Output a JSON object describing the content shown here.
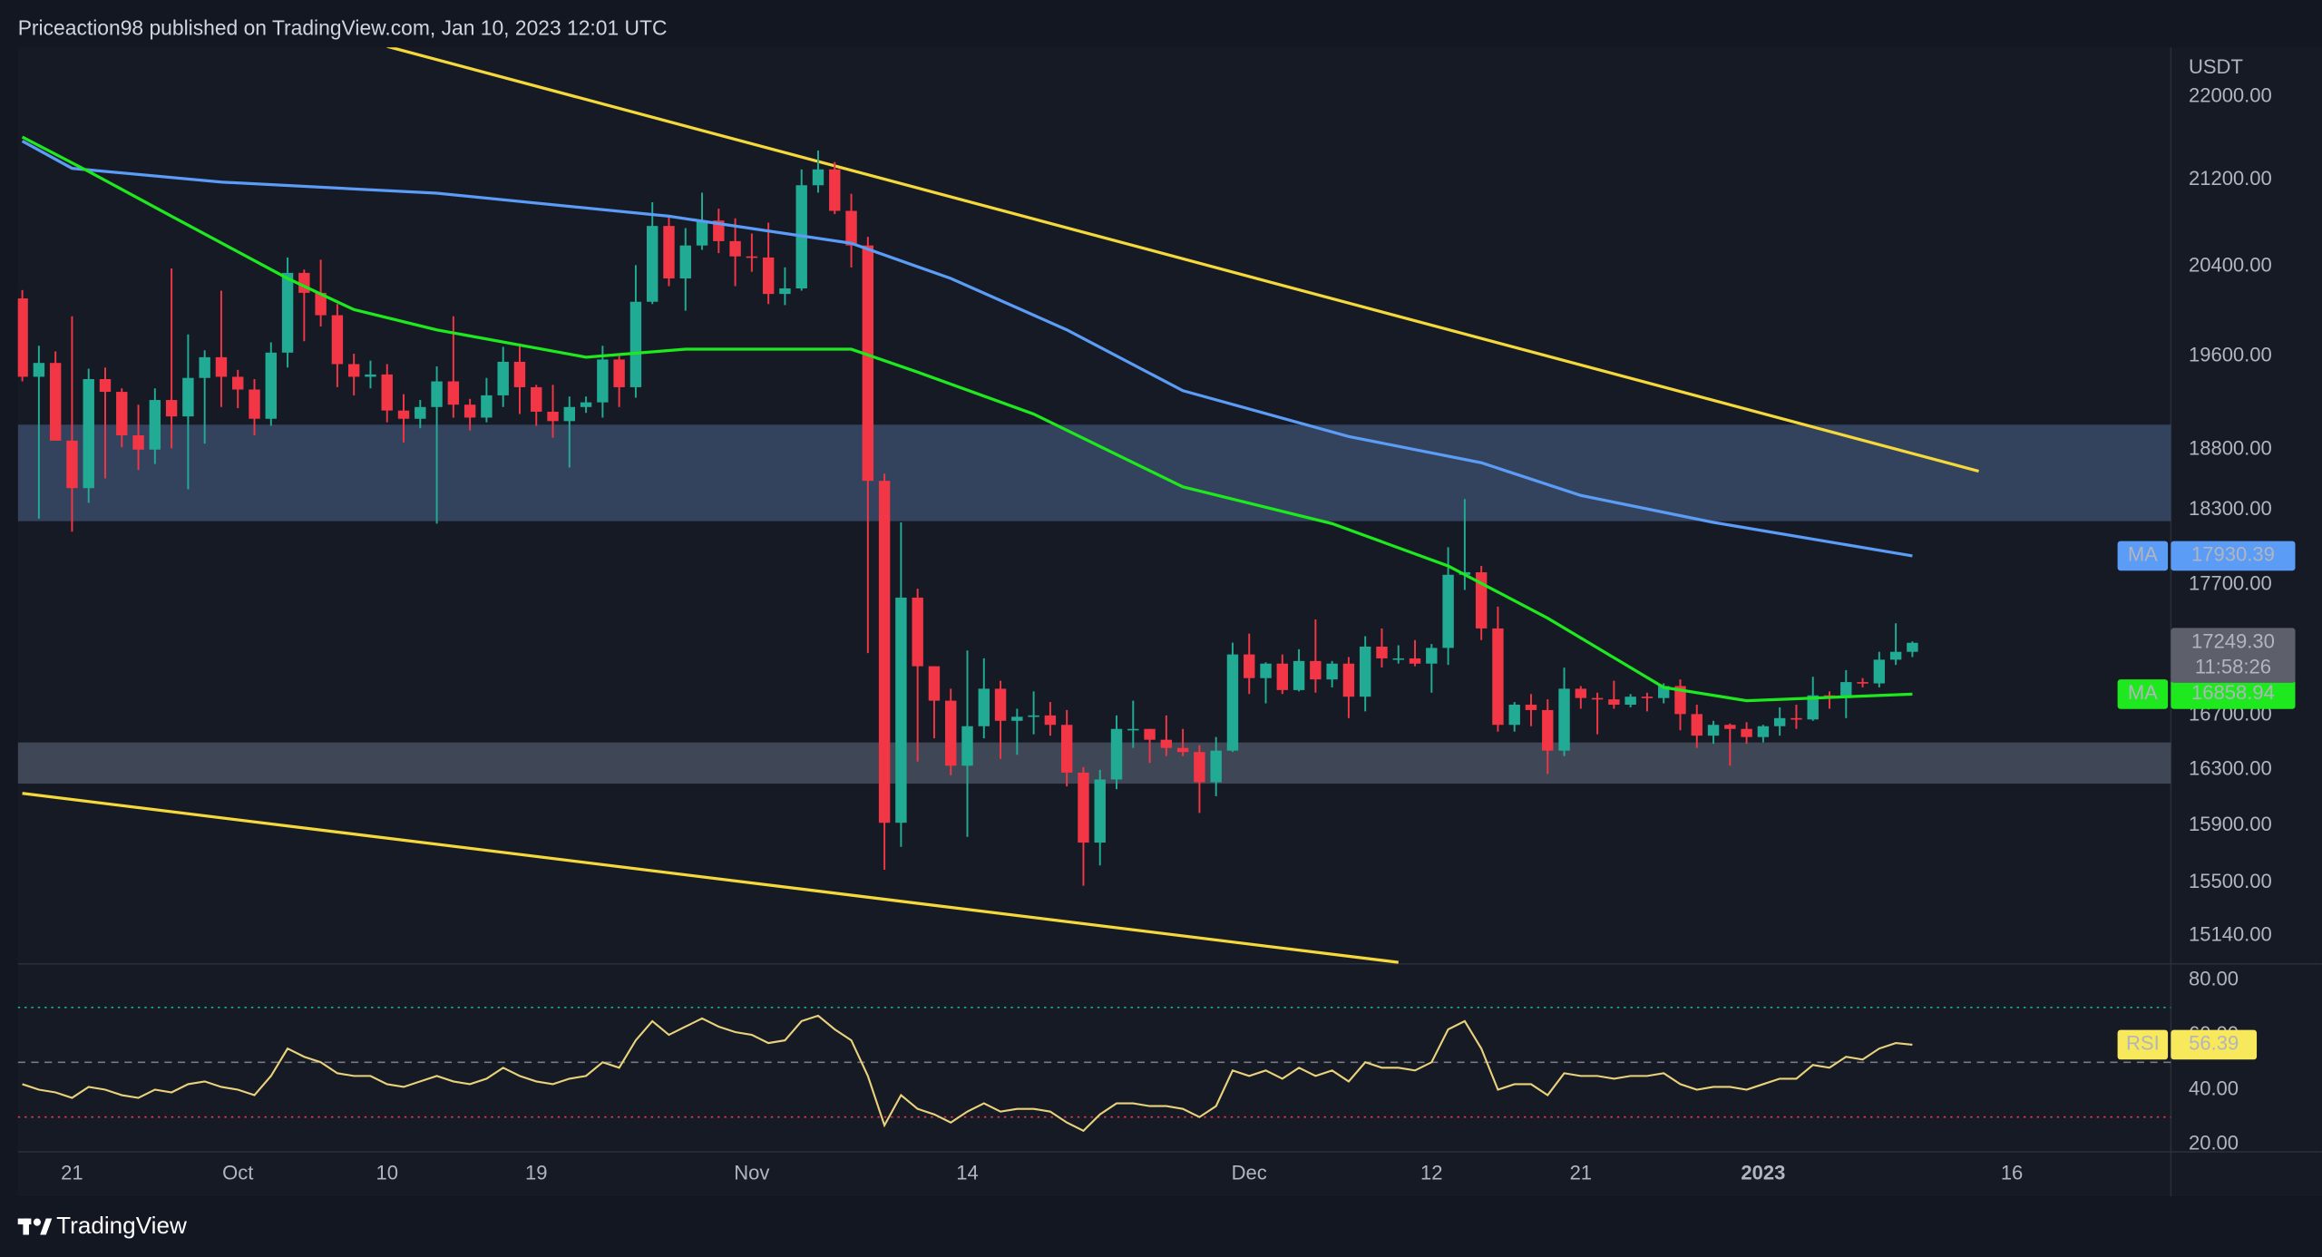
{
  "header": "Priceaction98 published on TradingView.com, Jan 10, 2023 12:01 UTC",
  "footer": {
    "brand": "TradingView"
  },
  "chart_data": [
    {
      "type": "candlestick",
      "unit": "USDT",
      "log_scale": true,
      "grid": false,
      "up_color": "#22ab94",
      "down_color": "#f23645",
      "xlim": [
        "2022-09-18",
        "2023-01-23"
      ],
      "ylim": [
        14960,
        22490
      ],
      "yticks": [
        {
          "value": 22000,
          "label": "22000.00"
        },
        {
          "value": 21200,
          "label": "21200.00"
        },
        {
          "value": 20400,
          "label": "20400.00"
        },
        {
          "value": 19600,
          "label": "19600.00"
        },
        {
          "value": 18800,
          "label": "18800.00"
        },
        {
          "value": 18300,
          "label": "18300.00"
        },
        {
          "value": 17700,
          "label": "17700.00"
        },
        {
          "value": 16700,
          "label": "16700.00"
        },
        {
          "value": 16300,
          "label": "16300.00"
        },
        {
          "value": 15900,
          "label": "15900.00"
        },
        {
          "value": 15500,
          "label": "15500.00"
        },
        {
          "value": 15140,
          "label": "15140.00"
        }
      ],
      "xticks": [
        {
          "value": "2022-09-21",
          "label": "21"
        },
        {
          "value": "2022-10-01",
          "label": "Oct"
        },
        {
          "value": "2022-10-10",
          "label": "10"
        },
        {
          "value": "2022-10-19",
          "label": "19"
        },
        {
          "value": "2022-11-01",
          "label": "Nov"
        },
        {
          "value": "2022-11-14",
          "label": "14"
        },
        {
          "value": "2022-12-01",
          "label": "Dec"
        },
        {
          "value": "2022-12-12",
          "label": "12"
        },
        {
          "value": "2022-12-21",
          "label": "21"
        },
        {
          "value": "2023-01-01",
          "label": "2023"
        },
        {
          "value": "2023-01-16",
          "label": "16"
        }
      ],
      "x": [
        "2022-09-18",
        "2022-09-19",
        "2022-09-20",
        "2022-09-21",
        "2022-09-22",
        "2022-09-23",
        "2022-09-24",
        "2022-09-25",
        "2022-09-26",
        "2022-09-27",
        "2022-09-28",
        "2022-09-29",
        "2022-09-30",
        "2022-10-01",
        "2022-10-02",
        "2022-10-03",
        "2022-10-04",
        "2022-10-05",
        "2022-10-06",
        "2022-10-07",
        "2022-10-08",
        "2022-10-09",
        "2022-10-10",
        "2022-10-11",
        "2022-10-12",
        "2022-10-13",
        "2022-10-14",
        "2022-10-15",
        "2022-10-16",
        "2022-10-17",
        "2022-10-18",
        "2022-10-19",
        "2022-10-20",
        "2022-10-21",
        "2022-10-22",
        "2022-10-23",
        "2022-10-24",
        "2022-10-25",
        "2022-10-26",
        "2022-10-27",
        "2022-10-28",
        "2022-10-29",
        "2022-10-30",
        "2022-10-31",
        "2022-11-01",
        "2022-11-02",
        "2022-11-03",
        "2022-11-04",
        "2022-11-05",
        "2022-11-06",
        "2022-11-07",
        "2022-11-08",
        "2022-11-09",
        "2022-11-10",
        "2022-11-11",
        "2022-11-12",
        "2022-11-13",
        "2022-11-14",
        "2022-11-15",
        "2022-11-16",
        "2022-11-17",
        "2022-11-18",
        "2022-11-19",
        "2022-11-20",
        "2022-11-21",
        "2022-11-22",
        "2022-11-23",
        "2022-11-24",
        "2022-11-25",
        "2022-11-26",
        "2022-11-27",
        "2022-11-28",
        "2022-11-29",
        "2022-11-30",
        "2022-12-01",
        "2022-12-02",
        "2022-12-03",
        "2022-12-04",
        "2022-12-05",
        "2022-12-06",
        "2022-12-07",
        "2022-12-08",
        "2022-12-09",
        "2022-12-10",
        "2022-12-11",
        "2022-12-12",
        "2022-12-13",
        "2022-12-14",
        "2022-12-15",
        "2022-12-16",
        "2022-12-17",
        "2022-12-18",
        "2022-12-19",
        "2022-12-20",
        "2022-12-21",
        "2022-12-22",
        "2022-12-23",
        "2022-12-24",
        "2022-12-25",
        "2022-12-26",
        "2022-12-27",
        "2022-12-28",
        "2022-12-29",
        "2022-12-30",
        "2022-12-31",
        "2023-01-01",
        "2023-01-02",
        "2023-01-03",
        "2023-01-04",
        "2023-01-05",
        "2023-01-06",
        "2023-01-07",
        "2023-01-08",
        "2023-01-09",
        "2023-01-10"
      ],
      "open": [
        20110,
        19420,
        19540,
        18875,
        18480,
        19400,
        19290,
        18920,
        18800,
        19220,
        19080,
        19410,
        19590,
        19420,
        19310,
        19060,
        19630,
        20340,
        20160,
        19960,
        19530,
        19420,
        19440,
        19130,
        19060,
        19160,
        19380,
        19180,
        19070,
        19260,
        19550,
        19330,
        19120,
        19040,
        19160,
        19200,
        19570,
        19330,
        20080,
        20770,
        20290,
        20590,
        20820,
        20630,
        20490,
        20480,
        20150,
        20200,
        21150,
        21300,
        20910,
        20590,
        18540,
        15920,
        17600,
        17070,
        16810,
        16330,
        16620,
        16900,
        16660,
        16690,
        16700,
        16630,
        16280,
        15780,
        16230,
        16600,
        16600,
        16520,
        16460,
        16430,
        16210,
        16440,
        17160,
        16980,
        17090,
        16890,
        17110,
        16970,
        17090,
        16840,
        17220,
        17130,
        17130,
        17090,
        17210,
        17780,
        17800,
        17360,
        16630,
        16780,
        16740,
        16440,
        16900,
        16830,
        16820,
        16780,
        16840,
        16830,
        16920,
        16710,
        16550,
        16630,
        16600,
        16540,
        16620,
        16680,
        16670,
        16850,
        16830,
        16950,
        16940,
        17120,
        17180
      ],
      "high": [
        20185,
        19690,
        19640,
        19950,
        19490,
        19500,
        19320,
        19180,
        19320,
        20380,
        19790,
        19650,
        20180,
        19480,
        19400,
        19720,
        20480,
        20370,
        20460,
        20060,
        19620,
        19560,
        19530,
        19270,
        19220,
        19510,
        19950,
        19230,
        19410,
        19680,
        19710,
        19350,
        19350,
        19250,
        19250,
        19690,
        19600,
        20410,
        20990,
        20860,
        20750,
        21080,
        20930,
        20840,
        20700,
        20800,
        20390,
        21300,
        21480,
        21370,
        21070,
        20670,
        18600,
        18200,
        17670,
        17070,
        16900,
        17190,
        17130,
        16960,
        16750,
        16880,
        16800,
        16740,
        16320,
        16300,
        16700,
        16810,
        16600,
        16700,
        16600,
        16480,
        16540,
        17250,
        17320,
        17100,
        17160,
        17200,
        17430,
        17110,
        17140,
        17300,
        17360,
        17230,
        17270,
        17240,
        18000,
        18390,
        17850,
        17530,
        16800,
        16860,
        16820,
        17060,
        16920,
        16870,
        16960,
        16860,
        16870,
        16940,
        16970,
        16780,
        16660,
        16640,
        16650,
        16630,
        16760,
        16780,
        16990,
        16880,
        17040,
        16980,
        17180,
        17400,
        17260
      ],
      "low": [
        19380,
        18230,
        18910,
        18125,
        18360,
        18560,
        18820,
        18630,
        18680,
        18810,
        18470,
        18850,
        19160,
        19150,
        18920,
        19000,
        19500,
        19730,
        19860,
        19330,
        19260,
        19320,
        19030,
        18860,
        18980,
        18190,
        19070,
        18960,
        19030,
        19160,
        19100,
        19000,
        18900,
        18650,
        19110,
        19070,
        19160,
        19240,
        20060,
        20220,
        20000,
        20550,
        20520,
        20220,
        20350,
        20060,
        20050,
        20180,
        21080,
        20880,
        20390,
        17170,
        15590,
        15750,
        16360,
        16530,
        16260,
        15820,
        16530,
        16380,
        16410,
        16560,
        16550,
        16180,
        15480,
        15620,
        16160,
        16460,
        16350,
        16400,
        16400,
        15990,
        16110,
        16430,
        16860,
        16790,
        16860,
        16880,
        16870,
        16910,
        16680,
        16730,
        17060,
        17090,
        17070,
        16870,
        17080,
        17660,
        17270,
        16580,
        16580,
        16620,
        16270,
        16400,
        16750,
        16560,
        16750,
        16760,
        16730,
        16790,
        16590,
        16460,
        16490,
        16330,
        16490,
        16500,
        16550,
        16600,
        16660,
        16750,
        16680,
        16910,
        16910,
        17080,
        17140
      ],
      "close": [
        19420,
        19540,
        18875,
        18480,
        19400,
        19290,
        18920,
        18800,
        19220,
        19080,
        19410,
        19590,
        19420,
        19310,
        19060,
        19630,
        20340,
        20160,
        19960,
        19530,
        19420,
        19440,
        19130,
        19060,
        19160,
        19380,
        19180,
        19070,
        19260,
        19550,
        19330,
        19120,
        19040,
        19160,
        19200,
        19570,
        19330,
        20080,
        20770,
        20290,
        20590,
        20820,
        20630,
        20490,
        20480,
        20150,
        20200,
        21150,
        21300,
        20910,
        20590,
        18540,
        15920,
        17600,
        17070,
        16810,
        16330,
        16620,
        16900,
        16660,
        16690,
        16700,
        16630,
        16280,
        15780,
        16230,
        16600,
        16600,
        16520,
        16460,
        16430,
        16210,
        16440,
        17160,
        16980,
        17090,
        16890,
        17110,
        16970,
        17090,
        16840,
        17220,
        17130,
        17130,
        17090,
        17210,
        17780,
        17800,
        17360,
        16630,
        16780,
        16740,
        16440,
        16900,
        16830,
        16820,
        16780,
        16840,
        16830,
        16920,
        16710,
        16550,
        16630,
        16600,
        16540,
        16620,
        16680,
        16670,
        16850,
        16830,
        16950,
        16940,
        17120,
        17180,
        17249.3
      ],
      "last_price": {
        "label": "17249.30",
        "countdown": "11:58:26",
        "color": "#5d606b"
      },
      "series": [
        {
          "name": "MA",
          "color": "#5b9cf6",
          "x": [
            "2022-09-18",
            "2022-09-21",
            "2022-09-30",
            "2022-10-13",
            "2022-10-27",
            "2022-11-07",
            "2022-11-13",
            "2022-11-20",
            "2022-11-27",
            "2022-12-07",
            "2022-12-15",
            "2022-12-21",
            "2022-12-29",
            "2023-01-10"
          ],
          "values": [
            21570,
            21310,
            21180,
            21075,
            20860,
            20610,
            20290,
            19830,
            19300,
            18910,
            18690,
            18420,
            18200,
            17930.39
          ]
        },
        {
          "name": "MA",
          "color": "#1ee81e",
          "x": [
            "2022-09-18",
            "2022-09-22",
            "2022-09-27",
            "2022-10-04",
            "2022-10-08",
            "2022-10-13",
            "2022-10-22",
            "2022-10-28",
            "2022-11-07",
            "2022-11-11",
            "2022-11-18",
            "2022-11-27",
            "2022-12-06",
            "2022-12-13",
            "2022-12-19",
            "2022-12-26",
            "2022-12-31",
            "2023-01-10"
          ],
          "values": [
            21610,
            21280,
            20860,
            20290,
            20010,
            19830,
            19590,
            19660,
            19660,
            19460,
            19100,
            18490,
            18190,
            17850,
            17440,
            16910,
            16810,
            16858.94
          ]
        }
      ],
      "trendlines": [
        {
          "color": "#f5d83c",
          "points": [
            [
              "2022-10-10",
              22500
            ],
            [
              "2023-01-14",
              18620
            ]
          ]
        },
        {
          "color": "#f5d83c",
          "points": [
            [
              "2022-09-18",
              16130
            ],
            [
              "2022-12-10",
              14960
            ]
          ]
        }
      ],
      "zones": [
        {
          "low": 18210,
          "high": 19010,
          "color": "#3f5270"
        },
        {
          "low": 16200,
          "high": 16500,
          "color": "#4d5666"
        }
      ]
    },
    {
      "type": "line",
      "name": "RSI",
      "color": "#e9d27a",
      "tag_color": "#f7e85c",
      "ylim": [
        17.3,
        85.9
      ],
      "yticks": [
        {
          "value": 80,
          "label": "80.00"
        },
        {
          "value": 60,
          "label": "60.00"
        },
        {
          "value": 40,
          "label": "40.00"
        },
        {
          "value": 20,
          "label": "20.00"
        }
      ],
      "levels": [
        {
          "value": 70,
          "color": "#22ab94"
        },
        {
          "value": 50,
          "color": "#787b86"
        },
        {
          "value": 30,
          "color": "#f23645"
        }
      ],
      "values": [
        42,
        40,
        39,
        37,
        41,
        40,
        38,
        37,
        40,
        39,
        42,
        43,
        41,
        40,
        38,
        45,
        55,
        52,
        50,
        46,
        45,
        45,
        42,
        41,
        43,
        45,
        43,
        42,
        44,
        48,
        45,
        43,
        42,
        44,
        45,
        50,
        48,
        58,
        65,
        60,
        63,
        66,
        63,
        61,
        60,
        57,
        58,
        65,
        67,
        62,
        58,
        45,
        27,
        38,
        33,
        31,
        28,
        32,
        35,
        32,
        33,
        33,
        32,
        28,
        25,
        31,
        35,
        35,
        34,
        34,
        33,
        30,
        34,
        47,
        45,
        47,
        44,
        48,
        45,
        47,
        43,
        50,
        48,
        48,
        47,
        50,
        62,
        65,
        55,
        40,
        42,
        42,
        38,
        46,
        45,
        45,
        44,
        45,
        45,
        46,
        42,
        40,
        41,
        41,
        40,
        42,
        44,
        44,
        49,
        48,
        52,
        51,
        55,
        57,
        56.39
      ]
    }
  ]
}
